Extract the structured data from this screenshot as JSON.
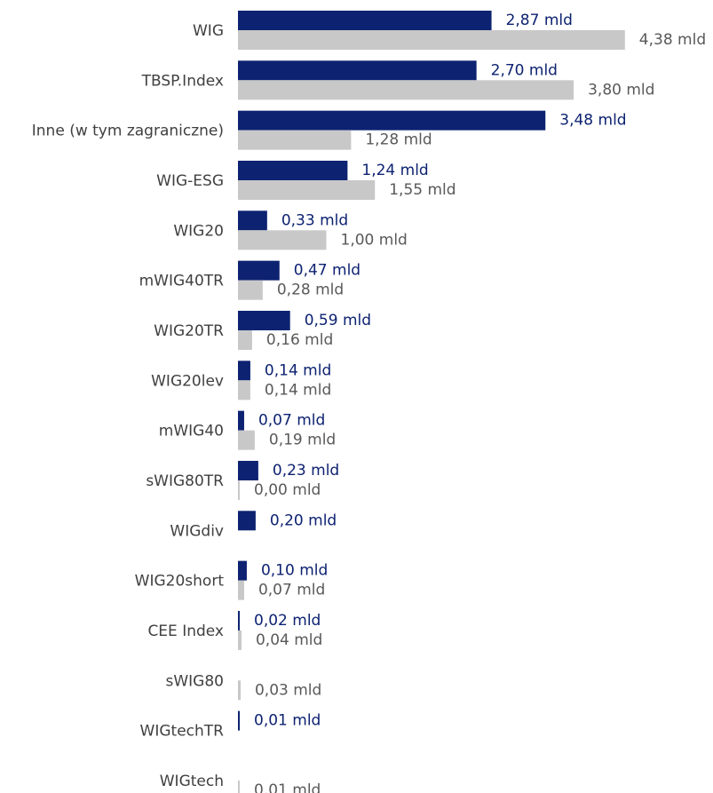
{
  "chart_data": {
    "type": "bar",
    "orientation": "horizontal",
    "categories": [
      "WIG",
      "TBSP.Index",
      "Inne (w tym zagraniczne)",
      "WIG-ESG",
      "WIG20",
      "mWIG40TR",
      "WIG20TR",
      "WIG20lev",
      "mWIG40",
      "sWIG80TR",
      "WIGdiv",
      "WIG20short",
      "CEE Index",
      "sWIG80",
      "WIGtechTR",
      "WIGtech"
    ],
    "series": [
      {
        "color": "#0d2271",
        "values": [
          2.87,
          2.7,
          3.48,
          1.24,
          0.33,
          0.47,
          0.59,
          0.14,
          0.07,
          0.23,
          0.2,
          0.1,
          0.02,
          null,
          0.01,
          null
        ],
        "labels": [
          "2,87 mld",
          "2,70 mld",
          "3,48 mld",
          "1,24 mld",
          "0,33 mld",
          "0,47 mld",
          "0,59 mld",
          "0,14 mld",
          "0,07 mld",
          "0,23 mld",
          "0,20 mld",
          "0,10 mld",
          "0,02 mld",
          null,
          "0,01 mld",
          null
        ]
      },
      {
        "color": "#c8c8c8",
        "values": [
          4.38,
          3.8,
          1.28,
          1.55,
          1.0,
          0.28,
          0.16,
          0.14,
          0.19,
          0.0,
          null,
          0.07,
          0.04,
          0.03,
          null,
          0.01
        ],
        "labels": [
          "4,38 mld",
          "3,80 mld",
          "1,28 mld",
          "1,55 mld",
          "1,00 mld",
          "0,28 mld",
          "0,16 mld",
          "0,14 mld",
          "0,19 mld",
          "0,00 mld",
          null,
          "0,07 mld",
          "0,04 mld",
          "0,03 mld",
          null,
          "0,01 mld"
        ]
      }
    ],
    "unit": "mld",
    "grid": false,
    "legend": "none"
  }
}
